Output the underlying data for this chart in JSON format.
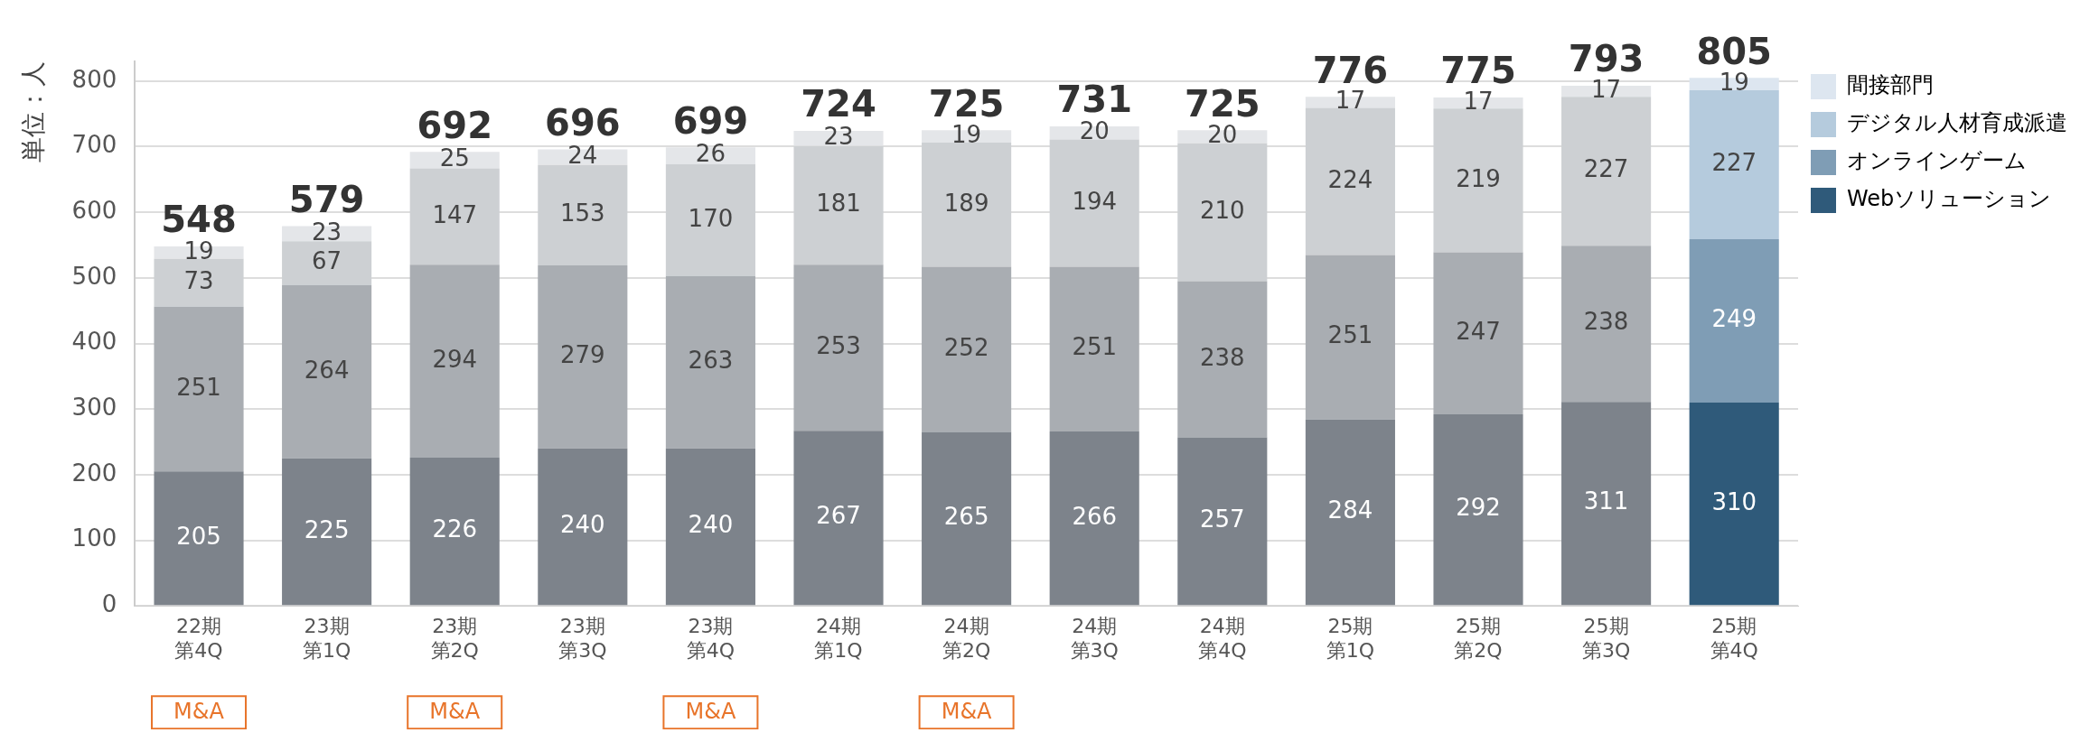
{
  "chart_data": {
    "type": "bar",
    "stacked": true,
    "ylabel": "単位：人",
    "categories": [
      "22期第4Q",
      "23期第1Q",
      "23期第2Q",
      "23期第3Q",
      "23期第4Q",
      "24期第1Q",
      "24期第2Q",
      "24期第3Q",
      "24期第4Q",
      "25期第1Q",
      "25期第2Q",
      "25期第3Q",
      "25期第4Q"
    ],
    "series": [
      {
        "name": "Webソリューション",
        "color": "#2f5a7a",
        "colors": [
          "#7d838b",
          "#7d838b",
          "#7d838b",
          "#7d838b",
          "#7d838b",
          "#7d838b",
          "#7d838b",
          "#7d838b",
          "#7d838b",
          "#7d838b",
          "#7d838b",
          "#7d838b",
          "#2f5a7a"
        ],
        "values": [
          205,
          225,
          226,
          240,
          240,
          267,
          265,
          266,
          257,
          284,
          292,
          311,
          310
        ]
      },
      {
        "name": "オンラインゲーム",
        "color": "#7f9db5",
        "colors": [
          "#a9adb2",
          "#a9adb2",
          "#a9adb2",
          "#a9adb2",
          "#a9adb2",
          "#a9adb2",
          "#a9adb2",
          "#a9adb2",
          "#a9adb2",
          "#a9adb2",
          "#a9adb2",
          "#a9adb2",
          "#7f9db5"
        ],
        "values": [
          251,
          264,
          294,
          279,
          263,
          253,
          252,
          251,
          238,
          251,
          247,
          238,
          249
        ]
      },
      {
        "name": "デジタル人材育成派遣",
        "color": "#b5cbdd",
        "colors": [
          "#cdd0d3",
          "#cdd0d3",
          "#cdd0d3",
          "#cdd0d3",
          "#cdd0d3",
          "#cdd0d3",
          "#cdd0d3",
          "#cdd0d3",
          "#cdd0d3",
          "#cdd0d3",
          "#cdd0d3",
          "#cdd0d3",
          "#b5cbdd"
        ],
        "values": [
          73,
          67,
          147,
          153,
          170,
          181,
          189,
          194,
          210,
          224,
          219,
          227,
          227
        ]
      },
      {
        "name": "間接部門",
        "color": "#dde6f0",
        "colors": [
          "#e4e6e9",
          "#e4e6e9",
          "#e4e6e9",
          "#e4e6e9",
          "#e4e6e9",
          "#e4e6e9",
          "#e4e6e9",
          "#e4e6e9",
          "#e4e6e9",
          "#e4e6e9",
          "#e4e6e9",
          "#e4e6e9",
          "#dde6f0"
        ],
        "values": [
          19,
          23,
          25,
          24,
          26,
          23,
          19,
          20,
          20,
          17,
          17,
          17,
          19
        ]
      }
    ],
    "totals": [
      "548",
      "579",
      "692",
      "696",
      "699",
      "724",
      "725",
      "731",
      "725",
      "776",
      "775",
      "793",
      "805"
    ],
    "ylim": [
      0,
      830
    ],
    "yticks": [
      0,
      100,
      200,
      300,
      400,
      500,
      600,
      700,
      800
    ],
    "grid": "y",
    "legend": "top right",
    "data_labels": true,
    "annotations": [
      "M&A",
      "M&A",
      "M&A",
      "M&A"
    ]
  }
}
